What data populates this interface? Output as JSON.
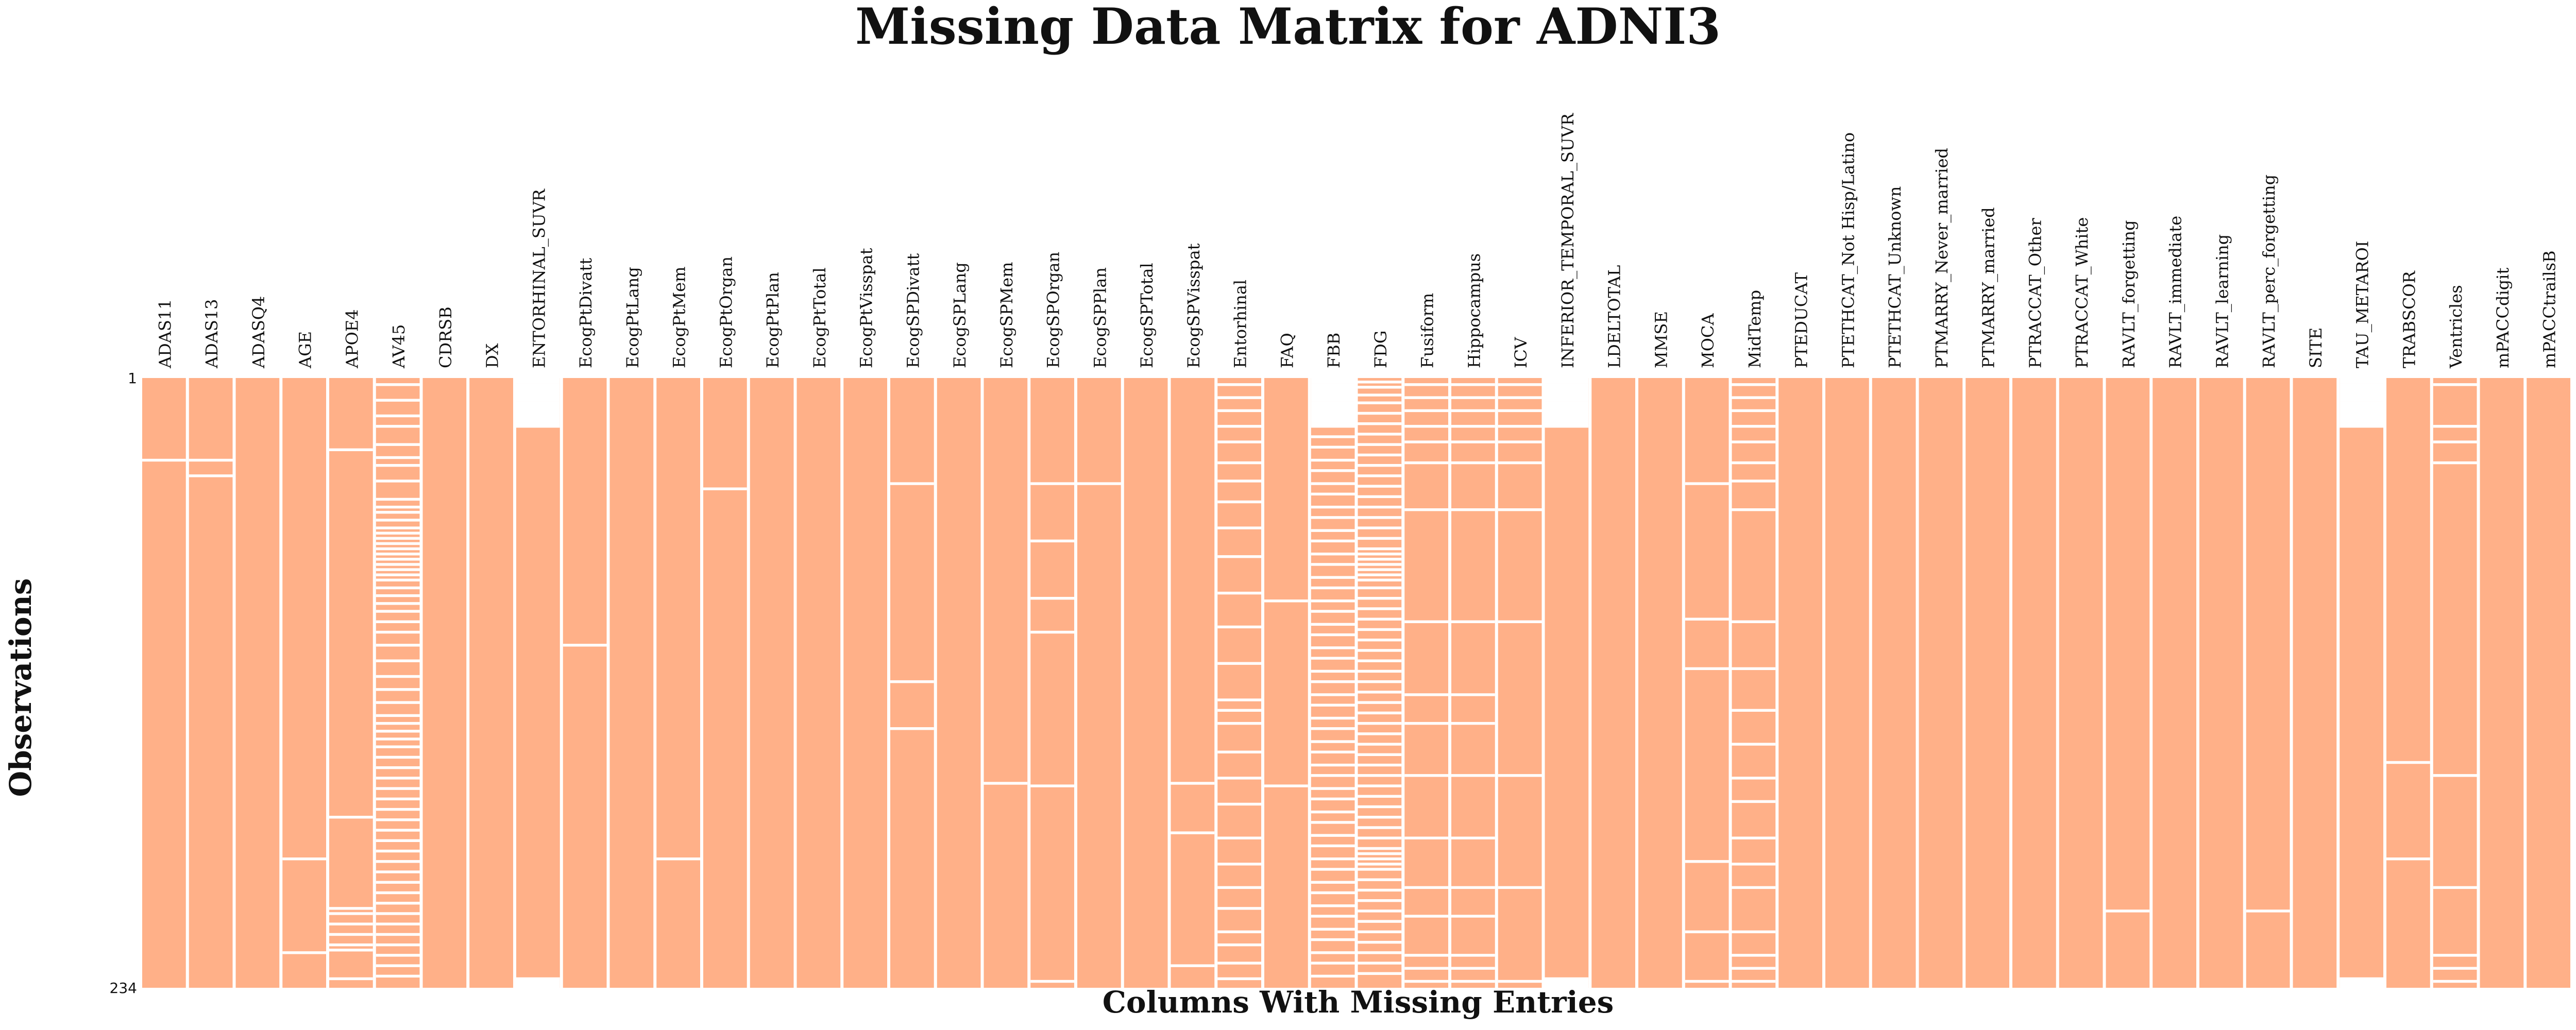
{
  "chart_data": {
    "type": "heatmap",
    "title": "Missing Data Matrix for ADNI3",
    "xlabel": "Columns With Missing Entries",
    "ylabel": "Observations",
    "n_rows": 234,
    "y_ticks": [
      "1",
      "234"
    ],
    "present_color": "#FFB088",
    "missing_color": "#FFFFFF",
    "columns": [
      {
        "name": "ADAS11",
        "missing_rows": [
          32
        ]
      },
      {
        "name": "ADAS13",
        "missing_rows": [
          32,
          38
        ]
      },
      {
        "name": "ADASQ4",
        "missing_rows": []
      },
      {
        "name": "AGE",
        "missing_rows": [
          185,
          221
        ]
      },
      {
        "name": "APOE4",
        "missing_rows": [
          28,
          169,
          204,
          206,
          210,
          214,
          218,
          220,
          231
        ]
      },
      {
        "name": "AV45",
        "missing_rows": [
          3,
          9,
          15,
          19,
          26,
          31,
          34,
          40,
          47,
          50,
          52,
          55,
          58,
          60,
          62,
          64,
          66,
          68,
          70,
          72,
          74,
          76,
          78,
          81,
          84,
          87,
          90,
          94,
          98,
          103,
          109,
          115,
          120,
          125,
          130,
          133,
          136,
          139,
          142,
          146,
          150,
          154,
          158,
          162,
          166,
          170,
          174,
          178,
          182,
          186,
          190,
          194,
          198,
          202,
          206,
          210,
          214,
          218,
          222,
          226,
          230
        ]
      },
      {
        "name": "CDRSB",
        "missing_rows": []
      },
      {
        "name": "DX",
        "missing_rows": []
      },
      {
        "name": "ENTORHINAL_SUVR",
        "missing_rows": [
          1,
          2,
          3,
          4,
          5,
          6,
          7,
          8,
          9,
          10,
          11,
          12,
          13,
          14,
          15,
          16,
          17,
          18,
          19,
          231,
          232,
          233,
          234
        ]
      },
      {
        "name": "EcogPtDivatt",
        "missing_rows": [
          103
        ]
      },
      {
        "name": "EcogPtLang",
        "missing_rows": []
      },
      {
        "name": "EcogPtMem",
        "missing_rows": [
          185
        ]
      },
      {
        "name": "EcogPtOrgan",
        "missing_rows": [
          43
        ]
      },
      {
        "name": "EcogPtPlan",
        "missing_rows": []
      },
      {
        "name": "EcogPtTotal",
        "missing_rows": []
      },
      {
        "name": "EcogPtVisspat",
        "missing_rows": []
      },
      {
        "name": "EcogSPDivatt",
        "missing_rows": [
          41,
          117,
          135
        ]
      },
      {
        "name": "EcogSPLang",
        "missing_rows": []
      },
      {
        "name": "EcogSPMem",
        "missing_rows": [
          156
        ]
      },
      {
        "name": "EcogSPOrgan",
        "missing_rows": [
          41,
          63,
          85,
          98,
          157,
          232
        ]
      },
      {
        "name": "EcogSPPlan",
        "missing_rows": [
          41
        ]
      },
      {
        "name": "EcogSPTotal",
        "missing_rows": []
      },
      {
        "name": "EcogSPVisspat",
        "missing_rows": [
          156,
          175,
          226
        ]
      },
      {
        "name": "Entorhinal",
        "missing_rows": [
          3,
          8,
          13,
          19,
          25,
          33,
          40,
          48,
          58,
          69,
          83,
          96,
          110,
          124,
          128,
          133,
          144,
          154,
          164,
          177,
          187,
          196,
          204,
          213,
          218,
          225,
          231
        ]
      },
      {
        "name": "FAQ",
        "missing_rows": [
          86,
          157
        ]
      },
      {
        "name": "FBB",
        "missing_rows": [
          1,
          2,
          3,
          4,
          5,
          6,
          7,
          8,
          9,
          10,
          11,
          12,
          13,
          14,
          15,
          16,
          17,
          18,
          19,
          23,
          27,
          32,
          36,
          41,
          45,
          50,
          54,
          59,
          63,
          68,
          72,
          77,
          81,
          86,
          90,
          95,
          99,
          104,
          108,
          113,
          117,
          122,
          126,
          131,
          135,
          140,
          144,
          149,
          153,
          158,
          162,
          167,
          171,
          176,
          180,
          185,
          189,
          194,
          198,
          203,
          207,
          212,
          216,
          221,
          225,
          230
        ]
      },
      {
        "name": "FDG",
        "missing_rows": [
          2,
          4,
          7,
          10,
          14,
          18,
          22,
          26,
          30,
          34,
          38,
          42,
          46,
          50,
          54,
          58,
          62,
          66,
          68,
          70,
          72,
          74,
          76,
          78,
          81,
          85,
          89,
          93,
          97,
          101,
          105,
          109,
          113,
          117,
          121,
          125,
          129,
          133,
          137,
          141,
          145,
          149,
          153,
          157,
          161,
          165,
          169,
          173,
          177,
          181,
          183,
          185,
          187,
          189,
          193,
          197,
          201,
          205,
          209,
          213,
          217,
          221,
          225,
          229
        ]
      },
      {
        "name": "Fusiform",
        "missing_rows": [
          3,
          8,
          13,
          19,
          25,
          33,
          51,
          94,
          122,
          133,
          153,
          177,
          196,
          207,
          222,
          227,
          232
        ]
      },
      {
        "name": "Hippocampus",
        "missing_rows": [
          3,
          8,
          13,
          19,
          25,
          33,
          51,
          94,
          122,
          133,
          153,
          177,
          196,
          207,
          222,
          227,
          232
        ]
      },
      {
        "name": "ICV",
        "missing_rows": [
          3,
          8,
          13,
          19,
          25,
          33,
          51,
          94,
          153,
          196,
          232
        ]
      },
      {
        "name": "INFERIOR_TEMPORAL_SUVR",
        "missing_rows": [
          1,
          2,
          3,
          4,
          5,
          6,
          7,
          8,
          9,
          10,
          11,
          12,
          13,
          14,
          15,
          16,
          17,
          18,
          19,
          231,
          232,
          233,
          234
        ]
      },
      {
        "name": "LDELTOTAL",
        "missing_rows": []
      },
      {
        "name": "MMSE",
        "missing_rows": []
      },
      {
        "name": "MOCA",
        "missing_rows": [
          41,
          93,
          112,
          186,
          213,
          232
        ]
      },
      {
        "name": "MidTemp",
        "missing_rows": [
          3,
          8,
          13,
          19,
          25,
          33,
          40,
          51,
          94,
          112,
          128,
          141,
          154,
          163,
          177,
          187,
          196,
          213,
          222,
          227,
          232
        ]
      },
      {
        "name": "PTEDUCAT",
        "missing_rows": []
      },
      {
        "name": "PTETHCAT_Not Hisp/Latino",
        "missing_rows": []
      },
      {
        "name": "PTETHCAT_Unknown",
        "missing_rows": []
      },
      {
        "name": "PTMARRY_Never_married",
        "missing_rows": []
      },
      {
        "name": "PTMARRY_married",
        "missing_rows": []
      },
      {
        "name": "PTRACCAT_Other",
        "missing_rows": []
      },
      {
        "name": "PTRACCAT_White",
        "missing_rows": []
      },
      {
        "name": "RAVLT_forgetting",
        "missing_rows": [
          205
        ]
      },
      {
        "name": "RAVLT_immediate",
        "missing_rows": []
      },
      {
        "name": "RAVLT_learning",
        "missing_rows": []
      },
      {
        "name": "RAVLT_perc_forgetting",
        "missing_rows": [
          205
        ]
      },
      {
        "name": "SITE",
        "missing_rows": []
      },
      {
        "name": "TAU_METAROI",
        "missing_rows": [
          1,
          2,
          3,
          4,
          5,
          6,
          7,
          8,
          9,
          10,
          11,
          12,
          13,
          14,
          15,
          16,
          17,
          18,
          19,
          231,
          232,
          233,
          234
        ]
      },
      {
        "name": "TRABSCOR",
        "missing_rows": [
          148,
          185
        ]
      },
      {
        "name": "Ventricles",
        "missing_rows": [
          3,
          19,
          25,
          33,
          153,
          196,
          222,
          227,
          232
        ]
      },
      {
        "name": "mPACCdigit",
        "missing_rows": []
      },
      {
        "name": "mPACCtrailsB",
        "missing_rows": []
      }
    ]
  }
}
